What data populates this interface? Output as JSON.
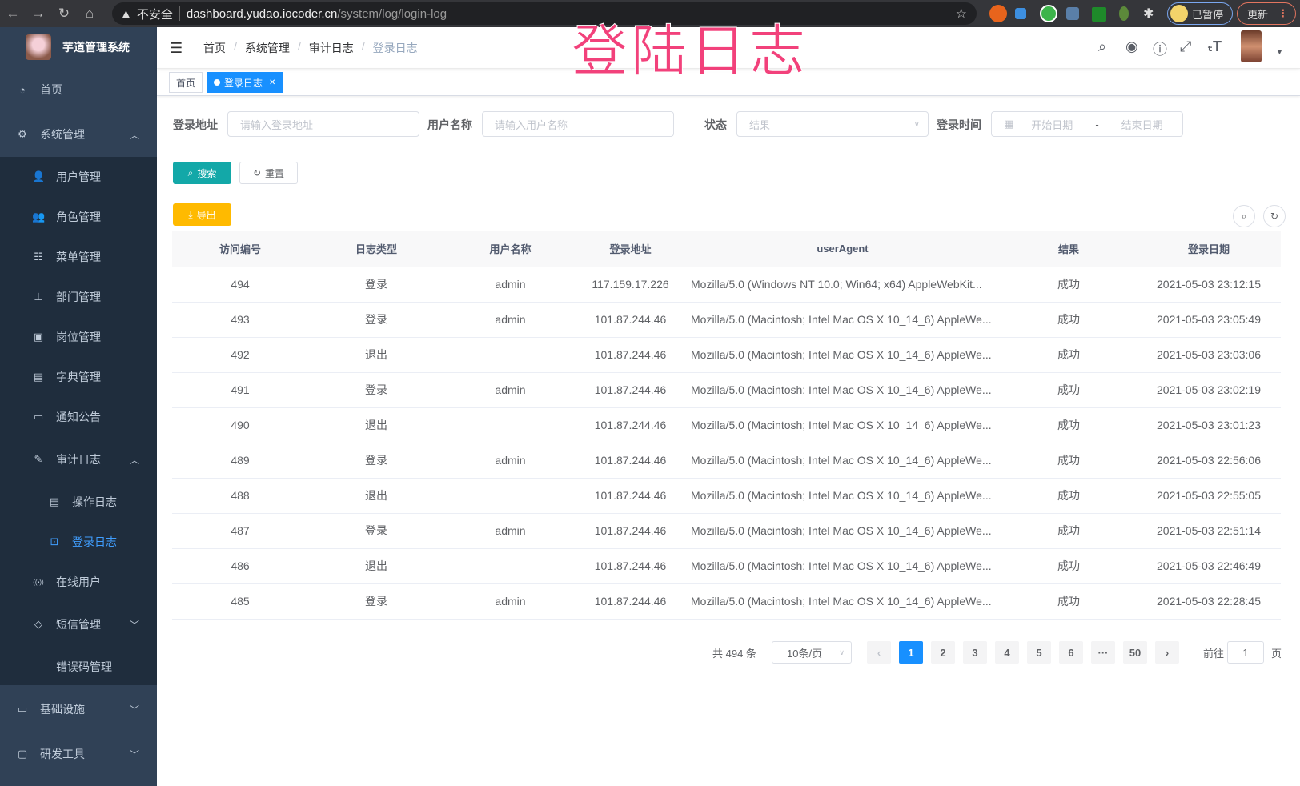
{
  "browser": {
    "security": "不安全",
    "host": "dashboard.yudao.iocoder.cn",
    "path": "/system/log/login-log",
    "paused_label": "已暂停",
    "update_label": "更新"
  },
  "overlay_title": "登陆日志",
  "sidebar": {
    "title": "芋道管理系统",
    "items": [
      {
        "label": "首页",
        "icon": "dashboard-icon"
      },
      {
        "label": "系统管理",
        "icon": "gear-icon",
        "expanded": true,
        "children": [
          {
            "label": "用户管理",
            "icon": "user-icon"
          },
          {
            "label": "角色管理",
            "icon": "peoples-icon"
          },
          {
            "label": "菜单管理",
            "icon": "tree-table-icon"
          },
          {
            "label": "部门管理",
            "icon": "tree-icon"
          },
          {
            "label": "岗位管理",
            "icon": "post-icon"
          },
          {
            "label": "字典管理",
            "icon": "dict-icon"
          },
          {
            "label": "通知公告",
            "icon": "message-icon"
          },
          {
            "label": "审计日志",
            "icon": "log-icon",
            "expanded": true,
            "children": [
              {
                "label": "操作日志",
                "icon": "form-icon"
              },
              {
                "label": "登录日志",
                "icon": "logininfor-icon",
                "active": true
              }
            ]
          },
          {
            "label": "在线用户",
            "icon": "online-icon"
          },
          {
            "label": "短信管理",
            "icon": "validCode-icon"
          },
          {
            "label": "错误码管理",
            "icon": "code-icon"
          }
        ]
      },
      {
        "label": "基础设施",
        "icon": "monitor-icon"
      },
      {
        "label": "研发工具",
        "icon": "tool-icon"
      }
    ]
  },
  "breadcrumb": [
    "首页",
    "系统管理",
    "审计日志",
    "登录日志"
  ],
  "tags": [
    {
      "label": "首页"
    },
    {
      "label": "登录日志",
      "active": true
    }
  ],
  "filters": {
    "ip_label": "登录地址",
    "ip_placeholder": "请输入登录地址",
    "user_label": "用户名称",
    "user_placeholder": "请输入用户名称",
    "status_label": "状态",
    "status_placeholder": "结果",
    "time_label": "登录时间",
    "start_placeholder": "开始日期",
    "range_sep": "-",
    "end_placeholder": "结束日期"
  },
  "buttons": {
    "search": "搜索",
    "reset": "重置",
    "export": "导出"
  },
  "table": {
    "columns": [
      "访问编号",
      "日志类型",
      "用户名称",
      "登录地址",
      "userAgent",
      "结果",
      "登录日期"
    ],
    "rows": [
      [
        "494",
        "登录",
        "admin",
        "117.159.17.226",
        "Mozilla/5.0 (Windows NT 10.0; Win64; x64) AppleWebKit...",
        "成功",
        "2021-05-03 23:12:15"
      ],
      [
        "493",
        "登录",
        "admin",
        "101.87.244.46",
        "Mozilla/5.0 (Macintosh; Intel Mac OS X 10_14_6) AppleWe...",
        "成功",
        "2021-05-03 23:05:49"
      ],
      [
        "492",
        "退出",
        "",
        "101.87.244.46",
        "Mozilla/5.0 (Macintosh; Intel Mac OS X 10_14_6) AppleWe...",
        "成功",
        "2021-05-03 23:03:06"
      ],
      [
        "491",
        "登录",
        "admin",
        "101.87.244.46",
        "Mozilla/5.0 (Macintosh; Intel Mac OS X 10_14_6) AppleWe...",
        "成功",
        "2021-05-03 23:02:19"
      ],
      [
        "490",
        "退出",
        "",
        "101.87.244.46",
        "Mozilla/5.0 (Macintosh; Intel Mac OS X 10_14_6) AppleWe...",
        "成功",
        "2021-05-03 23:01:23"
      ],
      [
        "489",
        "登录",
        "admin",
        "101.87.244.46",
        "Mozilla/5.0 (Macintosh; Intel Mac OS X 10_14_6) AppleWe...",
        "成功",
        "2021-05-03 22:56:06"
      ],
      [
        "488",
        "退出",
        "",
        "101.87.244.46",
        "Mozilla/5.0 (Macintosh; Intel Mac OS X 10_14_6) AppleWe...",
        "成功",
        "2021-05-03 22:55:05"
      ],
      [
        "487",
        "登录",
        "admin",
        "101.87.244.46",
        "Mozilla/5.0 (Macintosh; Intel Mac OS X 10_14_6) AppleWe...",
        "成功",
        "2021-05-03 22:51:14"
      ],
      [
        "486",
        "退出",
        "",
        "101.87.244.46",
        "Mozilla/5.0 (Macintosh; Intel Mac OS X 10_14_6) AppleWe...",
        "成功",
        "2021-05-03 22:46:49"
      ],
      [
        "485",
        "登录",
        "admin",
        "101.87.244.46",
        "Mozilla/5.0 (Macintosh; Intel Mac OS X 10_14_6) AppleWe...",
        "成功",
        "2021-05-03 22:28:45"
      ]
    ]
  },
  "pagination": {
    "total": "共 494 条",
    "page_size": "10条/页",
    "pages": [
      "1",
      "2",
      "3",
      "4",
      "5",
      "6",
      "···",
      "50"
    ],
    "current": "1",
    "goto_label": "前往",
    "goto_value": "1",
    "page_suffix": "页"
  },
  "colors": {
    "sidebar": "#304156",
    "submenu": "#1f2d3d",
    "primary": "#1890ff",
    "search": "#13a8a8",
    "export": "#ffba00",
    "overlay": "#f2417b"
  }
}
